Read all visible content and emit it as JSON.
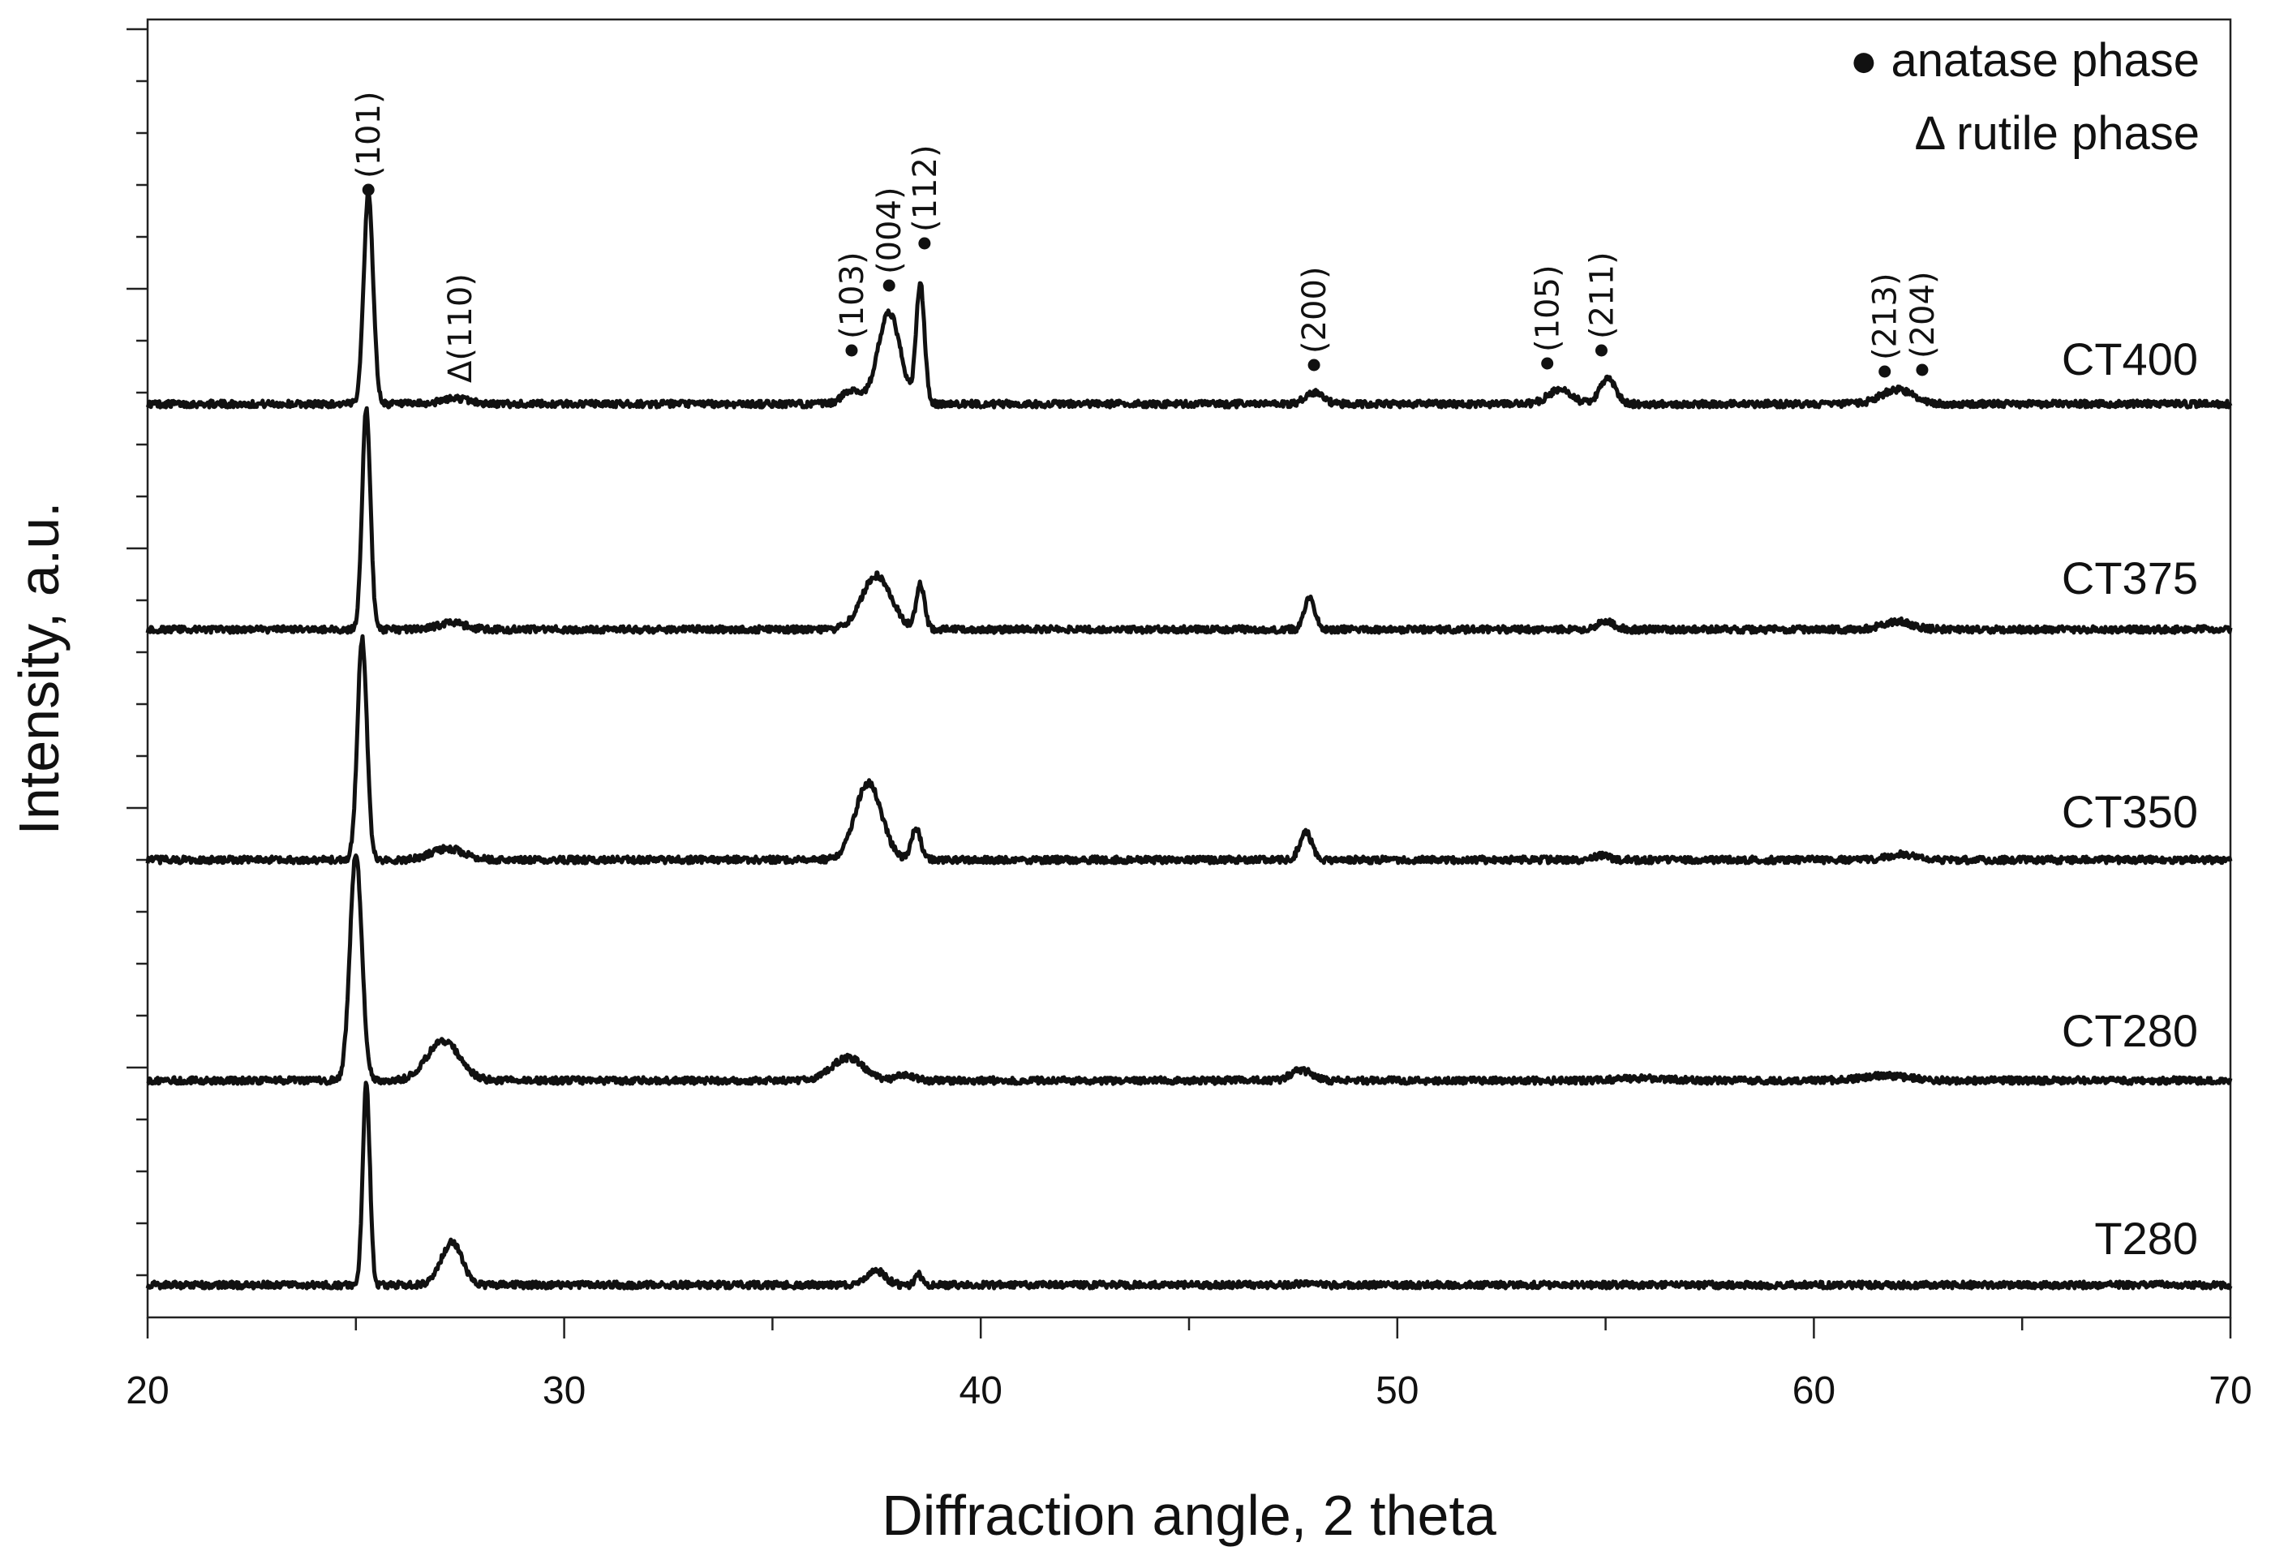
{
  "chart_data": {
    "type": "line",
    "title": "",
    "xlabel": "Diffraction angle, 2 theta",
    "ylabel": "Intensity, a.u.",
    "xlim": [
      20,
      70
    ],
    "x_ticks": [
      20,
      30,
      40,
      50,
      60,
      70
    ],
    "x_tick_labels": [
      "20",
      "30",
      "40",
      "50",
      "60",
      "70"
    ],
    "legend": [
      {
        "marker": "●",
        "text": "anatase phase"
      },
      {
        "marker": "Δ",
        "text": "rutile phase"
      }
    ],
    "legend_position": "top-right",
    "series": [
      {
        "name": "CT400",
        "baseline": 0.72,
        "peaks": [
          [
            25.3,
            3.7,
            0.16
          ],
          [
            27.4,
            0.1,
            0.45
          ],
          [
            36.9,
            0.25,
            0.3
          ],
          [
            37.8,
            1.6,
            0.38
          ],
          [
            38.55,
            2.1,
            0.14
          ],
          [
            48.0,
            0.2,
            0.3
          ],
          [
            53.9,
            0.25,
            0.4
          ],
          [
            55.05,
            0.45,
            0.26
          ],
          [
            62.0,
            0.25,
            0.55
          ]
        ]
      },
      {
        "name": "CT375",
        "baseline": 0.72,
        "peaks": [
          [
            25.25,
            3.9,
            0.14
          ],
          [
            27.3,
            0.12,
            0.45
          ],
          [
            37.5,
            0.95,
            0.5
          ],
          [
            38.55,
            0.8,
            0.14
          ],
          [
            47.9,
            0.55,
            0.18
          ],
          [
            55.0,
            0.15,
            0.28
          ],
          [
            62.0,
            0.14,
            0.5
          ]
        ]
      },
      {
        "name": "CT350",
        "baseline": 0.72,
        "peaks": [
          [
            25.15,
            3.9,
            0.16
          ],
          [
            27.2,
            0.2,
            0.55
          ],
          [
            37.3,
            1.35,
            0.45
          ],
          [
            38.45,
            0.55,
            0.16
          ],
          [
            47.8,
            0.5,
            0.2
          ],
          [
            54.9,
            0.08,
            0.25
          ],
          [
            62.1,
            0.1,
            0.5
          ]
        ]
      },
      {
        "name": "CT280",
        "baseline": 0.72,
        "peaks": [
          [
            25.0,
            4.0,
            0.2
          ],
          [
            27.1,
            0.7,
            0.55
          ],
          [
            36.8,
            0.4,
            0.55
          ],
          [
            38.2,
            0.1,
            0.28
          ],
          [
            47.7,
            0.18,
            0.35
          ],
          [
            55.9,
            0.04,
            0.8
          ],
          [
            61.7,
            0.08,
            0.8
          ]
        ]
      },
      {
        "name": "T280",
        "baseline": 0.72,
        "peaks": [
          [
            25.25,
            3.55,
            0.12
          ],
          [
            27.3,
            0.75,
            0.35
          ],
          [
            37.5,
            0.25,
            0.3
          ],
          [
            38.5,
            0.2,
            0.1
          ],
          [
            47.8,
            0.04,
            0.2
          ]
        ]
      }
    ],
    "peak_annotations": [
      {
        "label": "(101)",
        "phase": "anatase",
        "x": 25.3
      },
      {
        "label": "Δ(110)",
        "phase": "rutile",
        "x": 27.5
      },
      {
        "label": "(103)",
        "phase": "anatase",
        "x": 36.9
      },
      {
        "label": "(004)",
        "phase": "anatase",
        "x": 37.8
      },
      {
        "label": "(112)",
        "phase": "anatase",
        "x": 38.65
      },
      {
        "label": "(200)",
        "phase": "anatase",
        "x": 48.0
      },
      {
        "label": "(105)",
        "phase": "anatase",
        "x": 53.6
      },
      {
        "label": "(211)",
        "phase": "anatase",
        "x": 54.9
      },
      {
        "label": "(213)",
        "phase": "anatase",
        "x": 61.7
      },
      {
        "label": "(204)",
        "phase": "anatase",
        "x": 62.6
      }
    ]
  }
}
